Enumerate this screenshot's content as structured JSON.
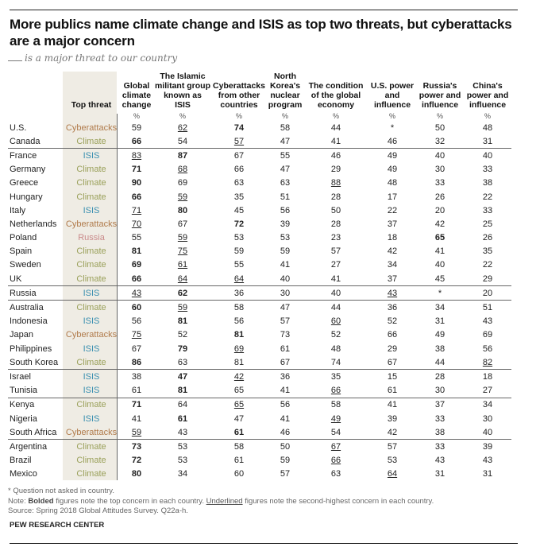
{
  "chart_data": {
    "type": "table",
    "title": "More publics name climate change and ISIS as top two threats, but cyberattacks are a major concern",
    "subtitle": "is a major threat to our country",
    "columns": [
      {
        "key": "threat",
        "label": "Top threat"
      },
      {
        "key": "climate",
        "label": "Global climate change"
      },
      {
        "key": "isis",
        "label": "The Islamic militant group known as ISIS"
      },
      {
        "key": "cyber",
        "label": "Cyberattacks from other countries"
      },
      {
        "key": "nk",
        "label": "North Korea's nuclear program"
      },
      {
        "key": "econ",
        "label": "The condition of the global economy"
      },
      {
        "key": "us",
        "label": "U.S. power and influence"
      },
      {
        "key": "russia",
        "label": "Russia's power and influence"
      },
      {
        "key": "china",
        "label": "China's power and influence"
      }
    ],
    "unit_label": "%",
    "threat_colors": {
      "Cyberattacks": "#b07a4a",
      "Climate": "#9aa05a",
      "ISIS": "#3a8fb0",
      "Russia": "#c98a8a"
    },
    "rows": [
      {
        "country": "U.S.",
        "threat": "Cyberattacks",
        "values": [
          "59",
          "62",
          "74",
          "58",
          "44",
          "*",
          "50",
          "48"
        ],
        "bold": [
          2
        ],
        "underline": [
          1
        ],
        "sep": false
      },
      {
        "country": "Canada",
        "threat": "Climate",
        "values": [
          "66",
          "54",
          "57",
          "47",
          "41",
          "46",
          "32",
          "31"
        ],
        "bold": [
          0
        ],
        "underline": [
          2
        ],
        "sep": false
      },
      {
        "country": "France",
        "threat": "ISIS",
        "values": [
          "83",
          "87",
          "67",
          "55",
          "46",
          "49",
          "40",
          "40"
        ],
        "bold": [
          1
        ],
        "underline": [
          0
        ],
        "sep": true
      },
      {
        "country": "Germany",
        "threat": "Climate",
        "values": [
          "71",
          "68",
          "66",
          "47",
          "29",
          "49",
          "30",
          "33"
        ],
        "bold": [
          0
        ],
        "underline": [
          1
        ],
        "sep": false
      },
      {
        "country": "Greece",
        "threat": "Climate",
        "values": [
          "90",
          "69",
          "63",
          "63",
          "88",
          "48",
          "33",
          "38"
        ],
        "bold": [
          0
        ],
        "underline": [
          4
        ],
        "sep": false
      },
      {
        "country": "Hungary",
        "threat": "Climate",
        "values": [
          "66",
          "59",
          "35",
          "51",
          "28",
          "17",
          "26",
          "22"
        ],
        "bold": [
          0
        ],
        "underline": [
          1
        ],
        "sep": false
      },
      {
        "country": "Italy",
        "threat": "ISIS",
        "values": [
          "71",
          "80",
          "45",
          "56",
          "50",
          "22",
          "20",
          "33"
        ],
        "bold": [
          1
        ],
        "underline": [
          0
        ],
        "sep": false
      },
      {
        "country": "Netherlands",
        "threat": "Cyberattacks",
        "values": [
          "70",
          "67",
          "72",
          "39",
          "28",
          "37",
          "42",
          "25"
        ],
        "bold": [
          2
        ],
        "underline": [
          0
        ],
        "sep": false
      },
      {
        "country": "Poland",
        "threat": "Russia",
        "values": [
          "55",
          "59",
          "53",
          "53",
          "23",
          "18",
          "65",
          "26"
        ],
        "bold": [
          6
        ],
        "underline": [
          1
        ],
        "sep": false
      },
      {
        "country": "Spain",
        "threat": "Climate",
        "values": [
          "81",
          "75",
          "59",
          "59",
          "57",
          "42",
          "41",
          "35"
        ],
        "bold": [
          0
        ],
        "underline": [
          1
        ],
        "sep": false
      },
      {
        "country": "Sweden",
        "threat": "Climate",
        "values": [
          "69",
          "61",
          "55",
          "41",
          "27",
          "34",
          "40",
          "22"
        ],
        "bold": [
          0
        ],
        "underline": [
          1
        ],
        "sep": false
      },
      {
        "country": "UK",
        "threat": "Climate",
        "values": [
          "66",
          "64",
          "64",
          "40",
          "41",
          "37",
          "45",
          "29"
        ],
        "bold": [
          0
        ],
        "underline": [
          1,
          2
        ],
        "sep": false
      },
      {
        "country": "Russia",
        "threat": "ISIS",
        "values": [
          "43",
          "62",
          "36",
          "30",
          "40",
          "43",
          "*",
          "20"
        ],
        "bold": [
          1
        ],
        "underline": [
          0,
          5
        ],
        "sep": true
      },
      {
        "country": "Australia",
        "threat": "Climate",
        "values": [
          "60",
          "59",
          "58",
          "47",
          "44",
          "36",
          "34",
          "51"
        ],
        "bold": [
          0
        ],
        "underline": [
          1
        ],
        "sep": true
      },
      {
        "country": "Indonesia",
        "threat": "ISIS",
        "values": [
          "56",
          "81",
          "56",
          "57",
          "60",
          "52",
          "31",
          "43"
        ],
        "bold": [
          1
        ],
        "underline": [
          4
        ],
        "sep": false
      },
      {
        "country": "Japan",
        "threat": "Cyberattacks",
        "values": [
          "75",
          "52",
          "81",
          "73",
          "52",
          "66",
          "49",
          "69"
        ],
        "bold": [
          2
        ],
        "underline": [
          0
        ],
        "sep": false
      },
      {
        "country": "Philippines",
        "threat": "ISIS",
        "values": [
          "67",
          "79",
          "69",
          "61",
          "48",
          "29",
          "38",
          "56"
        ],
        "bold": [
          1
        ],
        "underline": [
          2
        ],
        "sep": false
      },
      {
        "country": "South Korea",
        "threat": "Climate",
        "values": [
          "86",
          "63",
          "81",
          "67",
          "74",
          "67",
          "44",
          "82"
        ],
        "bold": [
          0
        ],
        "underline": [
          7
        ],
        "sep": false
      },
      {
        "country": "Israel",
        "threat": "ISIS",
        "values": [
          "38",
          "47",
          "42",
          "36",
          "35",
          "15",
          "28",
          "18"
        ],
        "bold": [
          1
        ],
        "underline": [
          2
        ],
        "sep": true
      },
      {
        "country": "Tunisia",
        "threat": "ISIS",
        "values": [
          "61",
          "81",
          "65",
          "41",
          "66",
          "61",
          "30",
          "27"
        ],
        "bold": [
          1
        ],
        "underline": [
          4
        ],
        "sep": false
      },
      {
        "country": "Kenya",
        "threat": "Climate",
        "values": [
          "71",
          "64",
          "65",
          "56",
          "58",
          "41",
          "37",
          "34"
        ],
        "bold": [
          0
        ],
        "underline": [
          2
        ],
        "sep": true
      },
      {
        "country": "Nigeria",
        "threat": "ISIS",
        "values": [
          "41",
          "61",
          "47",
          "41",
          "49",
          "39",
          "33",
          "30"
        ],
        "bold": [
          1
        ],
        "underline": [
          4
        ],
        "sep": false
      },
      {
        "country": "South Africa",
        "threat": "Cyberattacks",
        "values": [
          "59",
          "43",
          "61",
          "46",
          "54",
          "42",
          "38",
          "40"
        ],
        "bold": [
          2
        ],
        "underline": [
          0
        ],
        "sep": false
      },
      {
        "country": "Argentina",
        "threat": "Climate",
        "values": [
          "73",
          "53",
          "58",
          "50",
          "67",
          "57",
          "33",
          "39"
        ],
        "bold": [
          0
        ],
        "underline": [
          4
        ],
        "sep": true
      },
      {
        "country": "Brazil",
        "threat": "Climate",
        "values": [
          "72",
          "53",
          "61",
          "59",
          "66",
          "53",
          "43",
          "43"
        ],
        "bold": [
          0
        ],
        "underline": [
          4
        ],
        "sep": false
      },
      {
        "country": "Mexico",
        "threat": "Climate",
        "values": [
          "80",
          "34",
          "60",
          "57",
          "63",
          "64",
          "31",
          "31"
        ],
        "bold": [
          0
        ],
        "underline": [
          5
        ],
        "sep": false
      }
    ]
  },
  "notes": {
    "asterisk": "* Question not asked in country.",
    "note_prefix": "Note: ",
    "note_bold": "Bolded",
    "note_mid": " figures note the top concern in each country. ",
    "note_underline": "Underlined",
    "note_end": " figures note the second-highest concern in each country.",
    "source": "Source: Spring 2018 Global Attitudes Survey. Q22a-h."
  },
  "footer": "PEW RESEARCH CENTER"
}
